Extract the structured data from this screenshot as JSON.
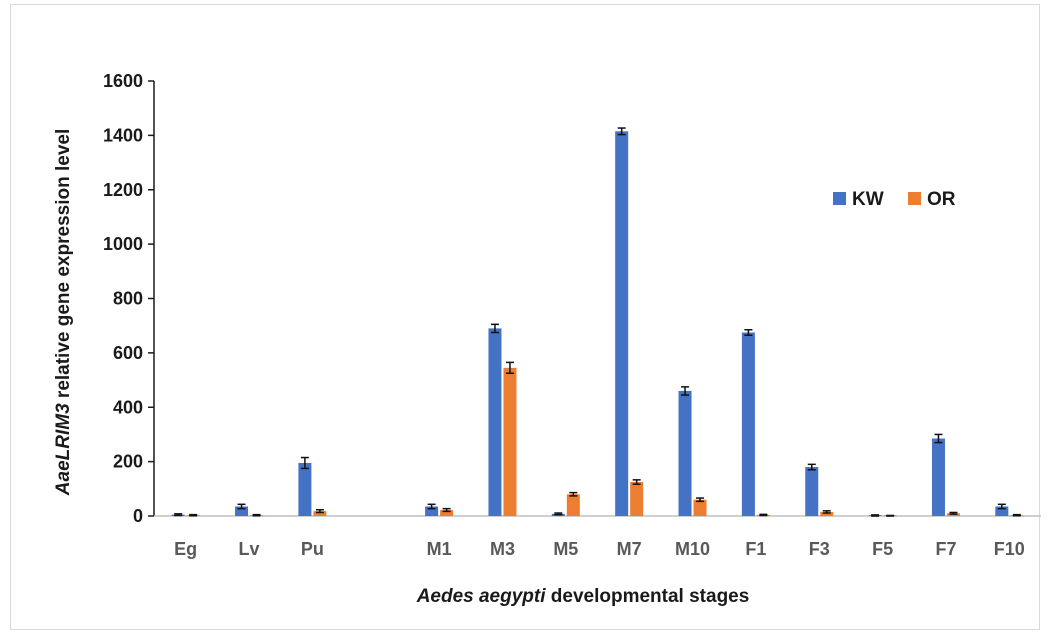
{
  "chart_data": {
    "type": "bar",
    "categories": [
      "Eg",
      "Lv",
      "Pu",
      "",
      "M1",
      "M3",
      "M5",
      "M7",
      "M10",
      "F1",
      "F3",
      "F5",
      "F7",
      "F10"
    ],
    "series": [
      {
        "name": "KW",
        "color": "#4472C4",
        "values": [
          5,
          35,
          195,
          null,
          35,
          690,
          8,
          1415,
          460,
          675,
          180,
          2,
          285,
          35
        ],
        "errors": [
          3,
          8,
          20,
          null,
          8,
          15,
          3,
          12,
          15,
          10,
          10,
          2,
          15,
          8
        ]
      },
      {
        "name": "OR",
        "color": "#ED7D31",
        "values": [
          3,
          3,
          18,
          null,
          22,
          545,
          80,
          125,
          60,
          4,
          15,
          1,
          10,
          3
        ],
        "errors": [
          2,
          2,
          5,
          null,
          5,
          20,
          6,
          8,
          6,
          2,
          4,
          1,
          3,
          2
        ]
      }
    ],
    "ylim": [
      0,
      1600
    ],
    "yticks": [
      "0",
      "200",
      "400",
      "600",
      "800",
      "1000",
      "1200",
      "1400",
      "1600"
    ],
    "ytick_values": [
      0,
      200,
      400,
      600,
      800,
      1000,
      1200,
      1400,
      1600
    ],
    "ylabel": {
      "italic_part": "AaeLRIM3",
      "rest": " relative gene expression level"
    },
    "xlabel": {
      "italic_part": "Aedes aegypti",
      "rest": " developmental stages"
    },
    "legend_position": "right-middle",
    "grid": false
  }
}
